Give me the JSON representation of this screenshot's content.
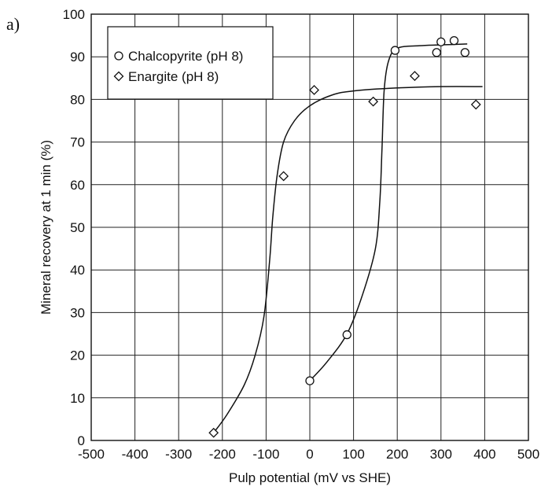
{
  "panel_label": "a)",
  "chart_data": {
    "type": "scatter",
    "title": "",
    "xlabel": "Pulp potential (mV vs SHE)",
    "ylabel": "Mineral recovery at 1 min (%)",
    "xlim": [
      -500,
      500
    ],
    "ylim": [
      0,
      100
    ],
    "xticks": [
      -500,
      -400,
      -300,
      -200,
      -100,
      0,
      100,
      200,
      300,
      400,
      500
    ],
    "xtick_labels": [
      "-500",
      "-400",
      "-300",
      "-200",
      "-100",
      "0",
      "100",
      "200",
      "300",
      "400",
      "500"
    ],
    "yticks": [
      0,
      10,
      20,
      30,
      40,
      50,
      60,
      70,
      80,
      90,
      100
    ],
    "ytick_labels": [
      "0",
      "10",
      "20",
      "30",
      "40",
      "50",
      "60",
      "70",
      "80",
      "90",
      "100"
    ],
    "grid": true,
    "legend_position": "top-left",
    "series": [
      {
        "name": "Chalcopyrite (pH 8)",
        "marker": "circle",
        "points": [
          [
            0,
            14
          ],
          [
            85,
            24.8
          ],
          [
            195,
            91.5
          ],
          [
            290,
            91
          ],
          [
            300,
            93.5
          ],
          [
            330,
            93.8
          ],
          [
            355,
            91
          ]
        ],
        "fit_curve": [
          [
            0,
            14
          ],
          [
            40,
            18.5
          ],
          [
            85,
            25
          ],
          [
            120,
            34
          ],
          [
            150,
            45
          ],
          [
            160,
            56
          ],
          [
            165,
            68
          ],
          [
            170,
            82
          ],
          [
            180,
            89
          ],
          [
            200,
            92
          ],
          [
            250,
            92.6
          ],
          [
            300,
            92.8
          ],
          [
            360,
            93
          ]
        ]
      },
      {
        "name": "Enargite (pH 8)",
        "marker": "diamond",
        "points": [
          [
            -220,
            1.8
          ],
          [
            -60,
            62
          ],
          [
            10,
            82.2
          ],
          [
            145,
            79.5
          ],
          [
            240,
            85.5
          ],
          [
            380,
            78.8
          ]
        ],
        "fit_curve": [
          [
            -220,
            1.8
          ],
          [
            -190,
            6
          ],
          [
            -150,
            13
          ],
          [
            -125,
            20
          ],
          [
            -105,
            29
          ],
          [
            -92,
            42
          ],
          [
            -85,
            52
          ],
          [
            -75,
            62
          ],
          [
            -60,
            70
          ],
          [
            -35,
            75
          ],
          [
            0,
            78.5
          ],
          [
            50,
            81
          ],
          [
            100,
            82
          ],
          [
            200,
            82.7
          ],
          [
            300,
            83
          ],
          [
            395,
            83
          ]
        ]
      }
    ]
  }
}
